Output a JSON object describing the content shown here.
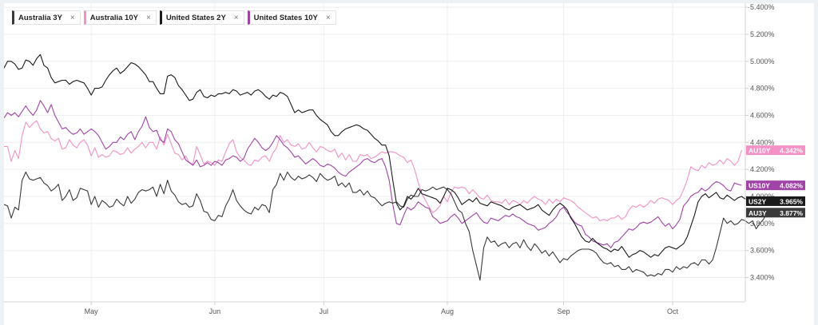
{
  "legend": [
    {
      "label": "Australia 3Y",
      "color": "#3a3a3a",
      "close": "×"
    },
    {
      "label": "Australia 10Y",
      "color": "#f292c6",
      "close": "×"
    },
    {
      "label": "United States 2Y",
      "color": "#1b1b1b",
      "close": "×"
    },
    {
      "label": "United States 10Y",
      "color": "#a044a8",
      "close": "×"
    }
  ],
  "corner_mark": "·",
  "chart_data": {
    "type": "line",
    "x_ticks": [
      {
        "label": "May",
        "x": 24
      },
      {
        "label": "Jun",
        "x": 58
      },
      {
        "label": "Jul",
        "x": 88
      },
      {
        "label": "Aug",
        "x": 122
      },
      {
        "label": "Sep",
        "x": 154
      },
      {
        "label": "Oct",
        "x": 184
      }
    ],
    "xlim": [
      0,
      204
    ],
    "y_ticks": [
      "5.400%",
      "5.200%",
      "5.000%",
      "4.800%",
      "4.600%",
      "4.400%",
      "4.200%",
      "4.000%",
      "3.800%",
      "3.600%",
      "3.400%"
    ],
    "ylim": [
      3.22,
      5.43
    ],
    "grid": true,
    "series": [
      {
        "name": "Australia 3Y",
        "tag": "AU3Y",
        "last_label": "3.877%",
        "color": "#3a3a3a",
        "values": [
          3.94,
          3.93,
          3.84,
          3.92,
          3.9,
          4.12,
          4.18,
          4.13,
          4.12,
          4.13,
          4.14,
          4.1,
          4.08,
          4.04,
          4.06,
          4.09,
          3.97,
          4.0,
          4.05,
          3.97,
          3.99,
          4.06,
          4.05,
          4.04,
          3.94,
          4.0,
          3.92,
          3.97,
          3.95,
          3.92,
          3.93,
          3.98,
          3.95,
          3.93,
          4.0,
          3.95,
          3.98,
          4.03,
          4.05,
          4.04,
          4.05,
          4.07,
          4.0,
          4.09,
          4.02,
          4.12,
          4.04,
          4.01,
          3.96,
          3.94,
          3.95,
          3.92,
          3.93,
          4.02,
          3.97,
          3.89,
          3.88,
          3.83,
          3.82,
          3.86,
          3.85,
          3.93,
          3.98,
          4.05,
          3.97,
          3.93,
          3.9,
          3.88,
          3.87,
          3.92,
          3.9,
          3.94,
          3.93,
          3.88,
          4.05,
          4.09,
          4.17,
          4.12,
          4.18,
          4.14,
          4.12,
          4.15,
          4.13,
          4.14,
          4.16,
          4.14,
          4.11,
          4.17,
          4.14,
          4.12,
          4.13,
          4.15,
          4.08,
          4.1,
          4.07,
          4.1,
          4.03,
          4.03,
          4.05,
          4.01,
          4.04,
          4.0,
          3.99,
          3.96,
          3.93,
          3.95,
          3.96,
          3.95,
          3.96,
          3.93,
          3.92,
          3.98,
          4.01,
          4.0,
          4.0,
          4.05,
          4.04,
          4.05,
          4.07,
          4.05,
          4.06,
          4.07,
          4.05,
          4.02,
          3.96,
          3.9,
          3.88,
          3.8,
          3.74,
          3.6,
          3.49,
          3.38,
          3.62,
          3.7,
          3.66,
          3.67,
          3.63,
          3.65,
          3.66,
          3.62,
          3.65,
          3.66,
          3.62,
          3.68,
          3.63,
          3.6,
          3.65,
          3.62,
          3.58,
          3.6,
          3.56,
          3.59,
          3.55,
          3.51,
          3.54,
          3.53,
          3.56,
          3.58,
          3.6,
          3.61,
          3.61,
          3.61,
          3.6,
          3.58,
          3.54,
          3.51,
          3.5,
          3.51,
          3.48,
          3.49,
          3.46,
          3.46,
          3.48,
          3.44,
          3.46,
          3.45,
          3.44,
          3.41,
          3.42,
          3.41,
          3.43,
          3.42,
          3.46,
          3.46,
          3.44,
          3.48,
          3.46,
          3.48,
          3.47,
          3.5,
          3.51,
          3.49,
          3.53,
          3.53,
          3.5,
          3.53,
          3.62,
          3.73,
          3.84,
          3.8,
          3.82,
          3.79,
          3.8,
          3.83,
          3.82,
          3.8,
          3.82,
          3.76,
          3.8,
          3.83,
          3.88
        ]
      },
      {
        "name": "Australia 10Y",
        "tag": "AU10Y",
        "last_label": "4.342%",
        "color": "#f292c6",
        "values": [
          4.37,
          4.37,
          4.26,
          4.34,
          4.28,
          4.45,
          4.55,
          4.51,
          4.54,
          4.56,
          4.5,
          4.47,
          4.48,
          4.43,
          4.41,
          4.43,
          4.35,
          4.36,
          4.42,
          4.38,
          4.36,
          4.4,
          4.42,
          4.38,
          4.3,
          4.36,
          4.29,
          4.31,
          4.29,
          4.3,
          4.34,
          4.33,
          4.31,
          4.32,
          4.36,
          4.32,
          4.35,
          4.37,
          4.4,
          4.36,
          4.4,
          4.4,
          4.35,
          4.44,
          4.38,
          4.46,
          4.39,
          4.32,
          4.31,
          4.27,
          4.3,
          4.25,
          4.24,
          4.37,
          4.31,
          4.24,
          4.26,
          4.25,
          4.23,
          4.27,
          4.26,
          4.33,
          4.39,
          4.42,
          4.33,
          4.29,
          4.27,
          4.24,
          4.23,
          4.27,
          4.26,
          4.29,
          4.3,
          4.26,
          4.32,
          4.36,
          4.45,
          4.4,
          4.42,
          4.38,
          4.37,
          4.39,
          4.35,
          4.36,
          4.4,
          4.36,
          4.33,
          4.37,
          4.36,
          4.34,
          4.33,
          4.35,
          4.29,
          4.32,
          4.27,
          4.31,
          4.26,
          4.26,
          4.31,
          4.3,
          4.31,
          4.28,
          4.29,
          4.31,
          4.33,
          4.32,
          4.33,
          4.33,
          4.32,
          4.3,
          4.29,
          4.25,
          4.27,
          4.2,
          4.1,
          4.02,
          3.97,
          3.92,
          3.88,
          3.9,
          3.93,
          4.0,
          3.96,
          4.03,
          4.07,
          4.06,
          4.07,
          4.06,
          4.02,
          4.05,
          4.02,
          3.99,
          3.98,
          4.01,
          3.97,
          3.96,
          3.96,
          3.95,
          3.98,
          3.94,
          3.97,
          3.96,
          3.94,
          3.97,
          3.95,
          3.98,
          4.0,
          3.98,
          3.97,
          3.94,
          3.98,
          3.95,
          3.98,
          3.96,
          3.99,
          3.98,
          3.97,
          3.95,
          3.92,
          3.9,
          3.88,
          3.86,
          3.84,
          3.85,
          3.82,
          3.83,
          3.82,
          3.84,
          3.84,
          3.86,
          3.83,
          3.85,
          3.9,
          3.93,
          3.92,
          3.94,
          3.92,
          3.94,
          3.97,
          3.95,
          3.98,
          3.99,
          3.98,
          3.97,
          3.94,
          3.97,
          3.99,
          4.05,
          4.12,
          4.22,
          4.2,
          4.19,
          4.23,
          4.21,
          4.25,
          4.23,
          4.24,
          4.27,
          4.24,
          4.28,
          4.26,
          4.23,
          4.26,
          4.342
        ]
      },
      {
        "name": "United States 2Y",
        "tag": "US2Y",
        "last_label": "3.965%",
        "color": "#1b1b1b",
        "values": [
          4.95,
          5.0,
          5.0,
          4.98,
          4.94,
          4.95,
          5.01,
          5.0,
          4.97,
          5.02,
          5.05,
          4.97,
          4.95,
          4.88,
          4.84,
          4.85,
          4.86,
          4.86,
          4.83,
          4.85,
          4.86,
          4.85,
          4.84,
          4.8,
          4.75,
          4.8,
          4.8,
          4.81,
          4.86,
          4.9,
          4.93,
          4.95,
          4.91,
          4.93,
          4.96,
          4.99,
          4.98,
          4.96,
          4.93,
          4.9,
          4.85,
          4.85,
          4.8,
          4.76,
          4.76,
          4.89,
          4.9,
          4.88,
          4.82,
          4.79,
          4.75,
          4.71,
          4.72,
          4.77,
          4.79,
          4.74,
          4.73,
          4.75,
          4.74,
          4.76,
          4.76,
          4.77,
          4.76,
          4.79,
          4.78,
          4.75,
          4.76,
          4.77,
          4.75,
          4.78,
          4.79,
          4.77,
          4.74,
          4.72,
          4.75,
          4.74,
          4.77,
          4.76,
          4.74,
          4.68,
          4.62,
          4.64,
          4.62,
          4.63,
          4.64,
          4.64,
          4.6,
          4.57,
          4.55,
          4.53,
          4.48,
          4.45,
          4.45,
          4.48,
          4.5,
          4.51,
          4.52,
          4.53,
          4.52,
          4.5,
          4.49,
          4.46,
          4.43,
          4.41,
          4.38,
          4.38,
          4.3,
          4.12,
          3.95,
          3.9,
          3.93,
          4.0,
          3.98,
          4.01,
          4.06,
          4.02,
          4.01,
          4.0,
          3.99,
          3.98,
          3.95,
          4.0,
          4.06,
          4.05,
          4.03,
          3.99,
          3.94,
          3.96,
          3.98,
          3.96,
          3.99,
          3.95,
          3.94,
          3.93,
          3.96,
          3.95,
          3.94,
          3.93,
          3.91,
          3.9,
          3.92,
          3.93,
          3.94,
          3.92,
          3.9,
          3.91,
          3.92,
          3.94,
          3.9,
          3.88,
          3.86,
          3.9,
          3.93,
          3.95,
          3.93,
          3.9,
          3.84,
          3.8,
          3.75,
          3.7,
          3.67,
          3.66,
          3.69,
          3.66,
          3.64,
          3.62,
          3.61,
          3.59,
          3.61,
          3.6,
          3.63,
          3.59,
          3.55,
          3.57,
          3.58,
          3.6,
          3.59,
          3.57,
          3.55,
          3.57,
          3.56,
          3.59,
          3.62,
          3.63,
          3.62,
          3.61,
          3.63,
          3.65,
          3.7,
          3.78,
          3.86,
          3.96,
          4.0,
          4.02,
          3.99,
          4.01,
          4.03,
          3.99,
          3.98,
          4.01,
          3.99,
          3.97,
          3.99,
          4.0,
          3.98,
          3.99,
          3.965
        ]
      },
      {
        "name": "United States 10Y",
        "tag": "US10Y",
        "last_label": "4.082%",
        "color": "#a044a8",
        "values": [
          4.58,
          4.62,
          4.6,
          4.62,
          4.59,
          4.63,
          4.67,
          4.63,
          4.6,
          4.64,
          4.71,
          4.67,
          4.62,
          4.68,
          4.6,
          4.55,
          4.5,
          4.51,
          4.48,
          4.46,
          4.47,
          4.5,
          4.46,
          4.48,
          4.5,
          4.48,
          4.45,
          4.4,
          4.35,
          4.37,
          4.4,
          4.4,
          4.44,
          4.42,
          4.46,
          4.48,
          4.42,
          4.48,
          4.52,
          4.59,
          4.51,
          4.48,
          4.49,
          4.42,
          4.4,
          4.5,
          4.48,
          4.42,
          4.39,
          4.33,
          4.27,
          4.25,
          4.23,
          4.27,
          4.22,
          4.23,
          4.25,
          4.23,
          4.26,
          4.25,
          4.23,
          4.27,
          4.28,
          4.3,
          4.29,
          4.26,
          4.28,
          4.35,
          4.39,
          4.43,
          4.4,
          4.36,
          4.34,
          4.36,
          4.4,
          4.45,
          4.42,
          4.38,
          4.36,
          4.33,
          4.29,
          4.3,
          4.27,
          4.24,
          4.26,
          4.28,
          4.26,
          4.23,
          4.22,
          4.24,
          4.23,
          4.21,
          4.18,
          4.16,
          4.15,
          4.18,
          4.2,
          4.22,
          4.24,
          4.27,
          4.28,
          4.26,
          4.25,
          4.27,
          4.28,
          4.22,
          4.12,
          3.94,
          3.8,
          3.79,
          3.86,
          3.92,
          3.9,
          3.92,
          3.96,
          3.94,
          3.92,
          3.91,
          3.85,
          3.83,
          3.8,
          3.81,
          3.82,
          3.85,
          3.87,
          3.84,
          3.8,
          3.82,
          3.84,
          3.86,
          3.88,
          3.84,
          3.81,
          3.8,
          3.84,
          3.83,
          3.82,
          3.84,
          3.86,
          3.85,
          3.87,
          3.85,
          3.84,
          3.82,
          3.8,
          3.79,
          3.78,
          3.75,
          3.76,
          3.77,
          3.8,
          3.82,
          3.85,
          3.9,
          3.92,
          3.88,
          3.85,
          3.81,
          3.79,
          3.78,
          3.72,
          3.7,
          3.67,
          3.66,
          3.65,
          3.64,
          3.65,
          3.62,
          3.66,
          3.67,
          3.7,
          3.73,
          3.76,
          3.75,
          3.77,
          3.8,
          3.81,
          3.8,
          3.81,
          3.83,
          3.85,
          3.81,
          3.78,
          3.8,
          3.76,
          3.79,
          3.83,
          3.93,
          3.96,
          4.0,
          4.02,
          4.03,
          4.06,
          4.04,
          4.06,
          4.09,
          4.11,
          4.1,
          4.08,
          4.05,
          4.04,
          4.1,
          4.09,
          4.082
        ]
      }
    ]
  }
}
